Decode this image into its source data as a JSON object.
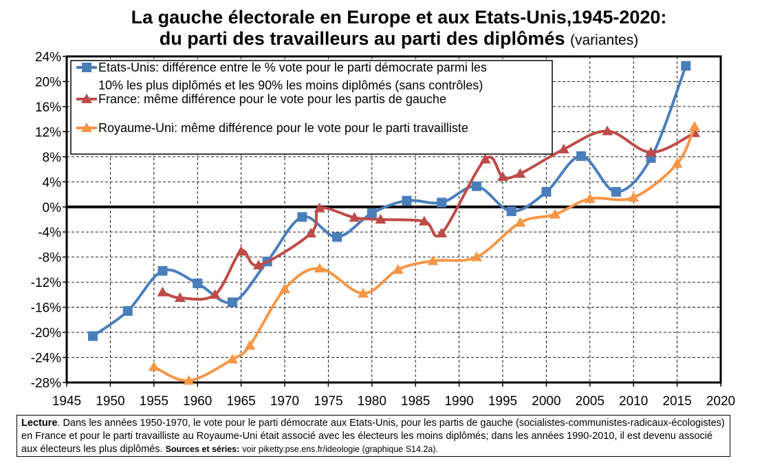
{
  "title": {
    "line1": "La gauche électorale en Europe et aux Etats-Unis,1945-2020:",
    "line2": "du parti des travailleurs au parti des diplômés",
    "line2_suffix": "(variantes)"
  },
  "note": {
    "lead_bold": "Lecture",
    "lead_rest": ". Dans les années 1950-1970, le vote pour le parti démocrate aux Etats-Unis, pour les partis de gauche (socialistes-communistes-radicaux-écologistes) en France et pour le parti travailliste au Royaume-Uni était associé avec les électeurs les moins diplômés; dans les années 1990-2010, il est devenu associé aux électeurs les plus diplômés.",
    "sources_bold": "Sources et séries:",
    "sources_rest": "voir piketty.pse.ens.fr/ideologie (graphique S14.2a)."
  },
  "chart_data": {
    "type": "line",
    "title": "La gauche électorale en Europe et aux Etats-Unis,1945-2020: du parti des travailleurs au parti des diplômés (variantes)",
    "xlabel": "",
    "ylabel": "",
    "xlim": [
      1945,
      2020
    ],
    "ylim": [
      -28,
      24
    ],
    "x_ticks": [
      "1945",
      "1950",
      "1955",
      "1960",
      "1965",
      "1970",
      "1975",
      "1980",
      "1985",
      "1990",
      "1995",
      "2000",
      "2005",
      "2010",
      "2015",
      "2020"
    ],
    "y_ticks": [
      "24%",
      "20%",
      "16%",
      "12%",
      "8%",
      "4%",
      "0%",
      "-4%",
      "-8%",
      "-12%",
      "-16%",
      "-20%",
      "-24%",
      "-28%"
    ],
    "legend_position": "top-left",
    "series": [
      {
        "name": "Etats-Unis: différence entre le % vote pour le parti démocrate parmi les 10% les plus diplômés et les 90% les moins diplômés (sans contrôles)",
        "legend_lines": [
          "Etats-Unis: différence entre le % vote pour le parti démocrate parmi les",
          "10% les plus diplômés et les 90% les moins diplômés (sans contrôles)"
        ],
        "color": "#4a7ebb",
        "marker": "square",
        "x": [
          1948,
          1952,
          1956,
          1960,
          1964,
          1968,
          1972,
          1976,
          1980,
          1984,
          1988,
          1992,
          1996,
          2000,
          2004,
          2008,
          2012,
          2016
        ],
        "y": [
          -20.6,
          -16.6,
          -10.2,
          -12.2,
          -15.2,
          -8.7,
          -1.6,
          -4.8,
          -1.0,
          1.0,
          0.7,
          3.3,
          -0.7,
          2.4,
          8.1,
          2.4,
          7.8,
          22.5
        ]
      },
      {
        "name": "France: même différence pour le vote pour les partis de gauche",
        "legend_lines": [
          "France: même différence pour le vote pour les partis de gauche"
        ],
        "color": "#be4b48",
        "marker": "triangle",
        "x": [
          1956,
          1958,
          1962,
          1965,
          1967,
          1973,
          1974,
          1978,
          1981,
          1986,
          1988,
          1993,
          1995,
          1997,
          2002,
          2007,
          2012,
          2017
        ],
        "y": [
          -13.6,
          -14.5,
          -14.0,
          -7.1,
          -9.3,
          -4.2,
          -0.2,
          -1.7,
          -2.0,
          -2.3,
          -4.2,
          7.6,
          4.8,
          5.3,
          9.2,
          12.1,
          8.7,
          11.8
        ]
      },
      {
        "name": "Royaume-Uni: même différence pour le vote pour le parti travailliste",
        "legend_lines": [
          "Royaume-Uni: même différence pour le vote pour le parti travailliste"
        ],
        "color": "#f79646",
        "marker": "triangle",
        "x": [
          1955,
          1959,
          1964,
          1966,
          1970,
          1974,
          1979,
          1983,
          1987,
          1992,
          1997,
          2001,
          2005,
          2010,
          2015,
          2017
        ],
        "y": [
          -25.5,
          -27.7,
          -24.3,
          -22.1,
          -13.1,
          -9.8,
          -13.8,
          -10.0,
          -8.6,
          -8.0,
          -2.5,
          -1.2,
          1.3,
          1.5,
          6.9,
          12.8
        ]
      }
    ]
  }
}
